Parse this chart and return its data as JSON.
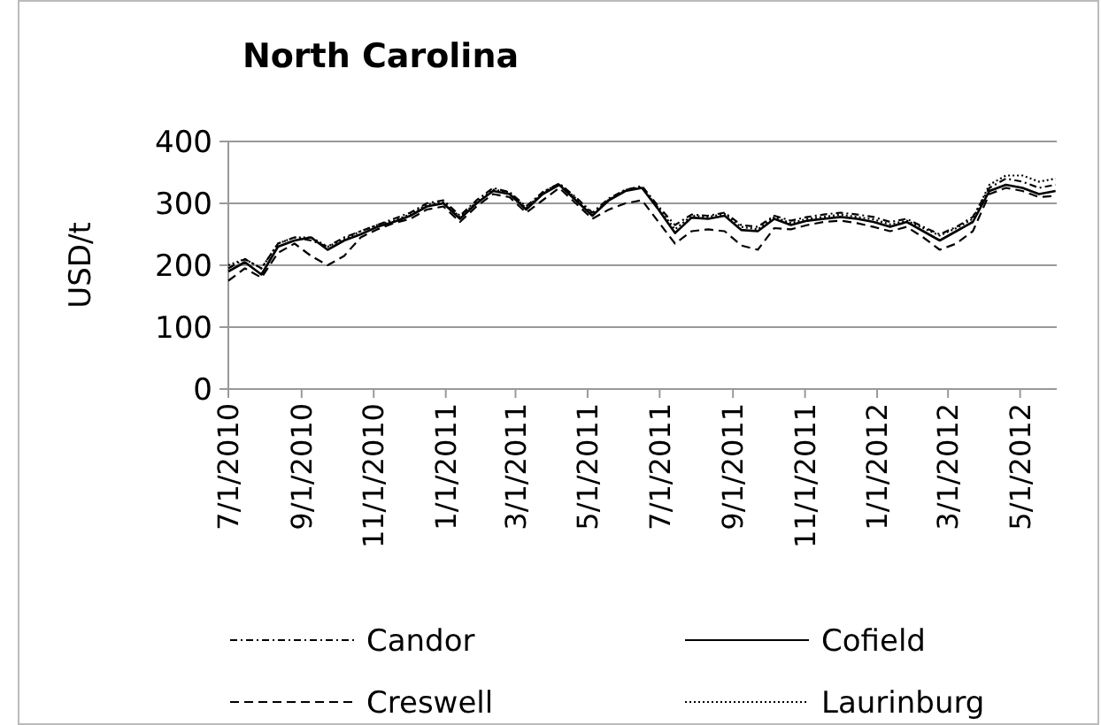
{
  "chart_data": {
    "type": "line",
    "title": "North Carolina",
    "ylabel": "USD/t",
    "x": [
      "2010-07-01",
      "2010-07-15",
      "2010-07-29",
      "2010-08-12",
      "2010-08-26",
      "2010-09-09",
      "2010-09-23",
      "2010-10-07",
      "2010-10-21",
      "2010-11-04",
      "2010-11-18",
      "2010-12-02",
      "2010-12-16",
      "2010-12-30",
      "2011-01-13",
      "2011-01-27",
      "2011-02-10",
      "2011-02-24",
      "2011-03-10",
      "2011-03-24",
      "2011-04-07",
      "2011-04-21",
      "2011-05-05",
      "2011-05-19",
      "2011-06-02",
      "2011-06-16",
      "2011-06-30",
      "2011-07-14",
      "2011-07-28",
      "2011-08-11",
      "2011-08-25",
      "2011-09-08",
      "2011-09-22",
      "2011-10-06",
      "2011-10-20",
      "2011-11-03",
      "2011-11-17",
      "2011-12-01",
      "2011-12-15",
      "2011-12-29",
      "2012-01-12",
      "2012-01-26",
      "2012-02-09",
      "2012-02-23",
      "2012-03-08",
      "2012-03-22",
      "2012-04-05",
      "2012-04-19",
      "2012-05-03",
      "2012-05-17",
      "2012-05-31"
    ],
    "series": [
      {
        "name": "Candor",
        "color": "#000000",
        "line_style": "dashdot",
        "values": [
          195,
          210,
          195,
          235,
          245,
          240,
          230,
          245,
          255,
          265,
          275,
          285,
          300,
          305,
          280,
          305,
          325,
          318,
          295,
          318,
          332,
          310,
          285,
          308,
          322,
          328,
          295,
          265,
          282,
          280,
          285,
          265,
          262,
          280,
          272,
          278,
          282,
          285,
          282,
          278,
          270,
          275,
          262,
          250,
          262,
          278,
          325,
          340,
          335,
          325,
          330
        ]
      },
      {
        "name": "Cofield",
        "color": "#000000",
        "line_style": "solid",
        "values": [
          190,
          205,
          185,
          230,
          240,
          245,
          225,
          240,
          250,
          262,
          270,
          280,
          295,
          300,
          275,
          300,
          320,
          315,
          290,
          315,
          330,
          305,
          280,
          305,
          320,
          325,
          290,
          252,
          277,
          275,
          280,
          257,
          255,
          275,
          265,
          272,
          275,
          278,
          275,
          270,
          262,
          270,
          255,
          240,
          255,
          270,
          320,
          330,
          325,
          315,
          320
        ]
      },
      {
        "name": "Creswell",
        "color": "#000000",
        "line_style": "dashed",
        "values": [
          175,
          195,
          180,
          220,
          235,
          215,
          200,
          215,
          245,
          258,
          268,
          275,
          290,
          295,
          270,
          295,
          315,
          310,
          285,
          305,
          325,
          300,
          275,
          290,
          300,
          305,
          270,
          235,
          255,
          258,
          255,
          232,
          225,
          260,
          258,
          265,
          270,
          272,
          268,
          262,
          255,
          262,
          245,
          225,
          235,
          255,
          315,
          325,
          320,
          310,
          312
        ]
      },
      {
        "name": "Laurinburg",
        "color": "#000000",
        "line_style": "dotted",
        "values": [
          200,
          210,
          195,
          235,
          245,
          245,
          230,
          242,
          255,
          265,
          272,
          282,
          298,
          302,
          278,
          302,
          322,
          318,
          292,
          318,
          332,
          308,
          283,
          306,
          322,
          326,
          292,
          258,
          280,
          278,
          283,
          262,
          258,
          278,
          268,
          275,
          278,
          282,
          278,
          274,
          266,
          272,
          260,
          248,
          260,
          275,
          330,
          345,
          345,
          335,
          340
        ]
      }
    ],
    "xlim": [
      "2010-07-01",
      "2012-06-01"
    ],
    "xticks": [
      {
        "value": "2010-07-01",
        "label": "7/1/2010"
      },
      {
        "value": "2010-09-01",
        "label": "9/1/2010"
      },
      {
        "value": "2010-11-01",
        "label": "11/1/2010"
      },
      {
        "value": "2011-01-01",
        "label": "1/1/2011"
      },
      {
        "value": "2011-03-01",
        "label": "3/1/2011"
      },
      {
        "value": "2011-05-01",
        "label": "5/1/2011"
      },
      {
        "value": "2011-07-01",
        "label": "7/1/2011"
      },
      {
        "value": "2011-09-01",
        "label": "9/1/2011"
      },
      {
        "value": "2011-11-01",
        "label": "11/1/2011"
      },
      {
        "value": "2012-01-01",
        "label": "1/1/2012"
      },
      {
        "value": "2012-03-01",
        "label": "3/1/2012"
      },
      {
        "value": "2012-05-01",
        "label": "5/1/2012"
      }
    ],
    "ylim": [
      0,
      400
    ],
    "yticks": [
      0,
      100,
      200,
      300,
      400
    ],
    "grid": "y",
    "legend": "bottom"
  }
}
